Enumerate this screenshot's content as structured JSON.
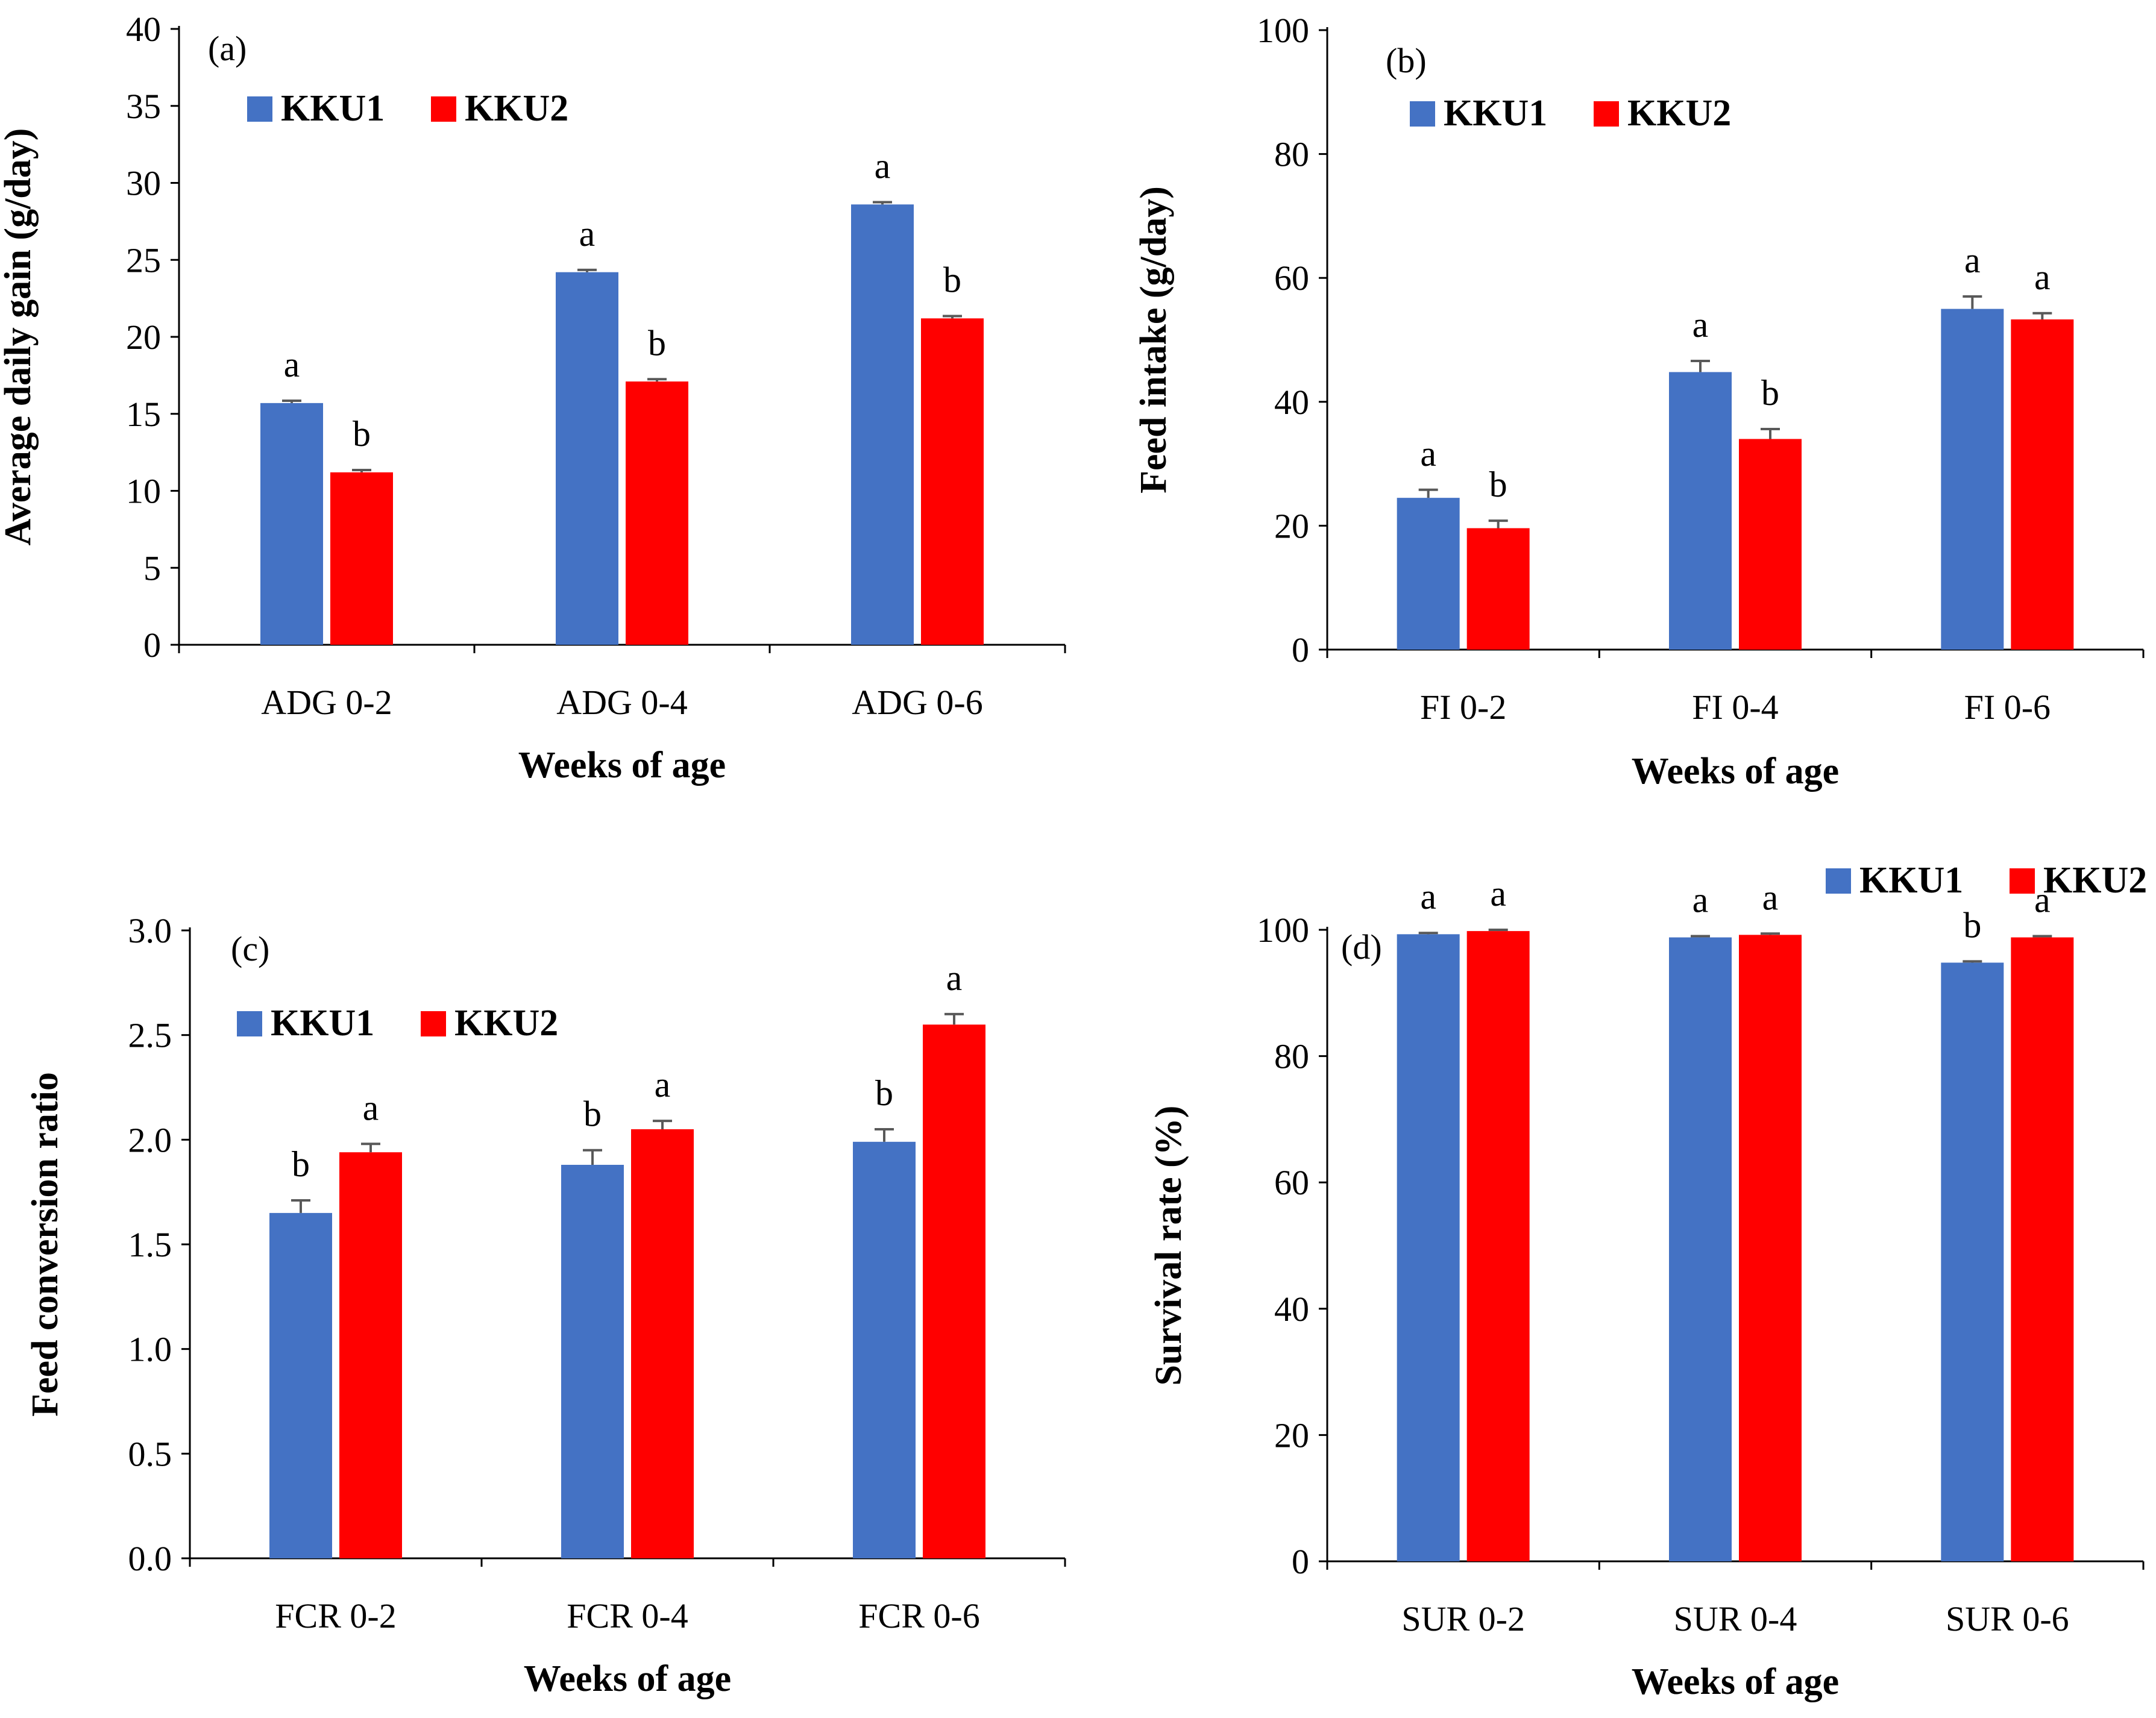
{
  "figure": {
    "colors": {
      "KKU1": "#4472C4",
      "KKU2": "#FF0000",
      "error_bar": "#595959",
      "axis": "#000000"
    }
  },
  "chart_data": [
    {
      "type": "bar",
      "panel_tag": "(a)",
      "ylabel": "Average daily gain (g/day)",
      "xlabel": "Weeks of age",
      "categories": [
        "ADG 0-2",
        "ADG 0-4",
        "ADG 0-6"
      ],
      "ylim": [
        0,
        40
      ],
      "yticks": [
        0,
        5,
        10,
        15,
        20,
        25,
        30,
        35,
        40
      ],
      "ytick_labels": [
        "0",
        "5",
        "10",
        "15",
        "20",
        "25",
        "30",
        "35",
        "40"
      ],
      "legend": [
        "KKU1",
        "KKU2"
      ],
      "legend_position": "top-left",
      "series": [
        {
          "name": "KKU1",
          "values": [
            15.7,
            24.2,
            28.6
          ],
          "errors": [
            0.15,
            0.15,
            0.15
          ],
          "letters": [
            "a",
            "a",
            "a"
          ]
        },
        {
          "name": "KKU2",
          "values": [
            11.2,
            17.1,
            21.2
          ],
          "errors": [
            0.15,
            0.15,
            0.15
          ],
          "letters": [
            "b",
            "b",
            "b"
          ]
        }
      ]
    },
    {
      "type": "bar",
      "panel_tag": "(b)",
      "ylabel": "Feed intake (g/day)",
      "xlabel": "Weeks of age",
      "categories": [
        "FI 0-2",
        "FI 0-4",
        "FI 0-6"
      ],
      "ylim": [
        0,
        100
      ],
      "yticks": [
        0,
        20,
        40,
        60,
        80,
        100
      ],
      "ytick_labels": [
        "0",
        "20",
        "40",
        "60",
        "80",
        "100"
      ],
      "legend": [
        "KKU1",
        "KKU2"
      ],
      "legend_position": "top-left",
      "series": [
        {
          "name": "KKU1",
          "values": [
            24.5,
            44.8,
            55.0
          ],
          "errors": [
            1.3,
            1.8,
            2.0
          ],
          "letters": [
            "a",
            "a",
            "a"
          ]
        },
        {
          "name": "KKU2",
          "values": [
            19.6,
            34.0,
            53.3
          ],
          "errors": [
            1.2,
            1.6,
            1.0
          ],
          "letters": [
            "b",
            "b",
            "a"
          ]
        }
      ]
    },
    {
      "type": "bar",
      "panel_tag": "(c)",
      "ylabel": "Feed conversion ratio",
      "xlabel": "Weeks of age",
      "categories": [
        "FCR 0-2",
        "FCR 0-4",
        "FCR 0-6"
      ],
      "ylim": [
        0,
        3
      ],
      "yticks": [
        0,
        0.5,
        1,
        1.5,
        2,
        2.5,
        3
      ],
      "ytick_labels": [
        "0.0",
        "0.5",
        "1.0",
        "1.5",
        "2.0",
        "2.5",
        "3.0"
      ],
      "legend": [
        "KKU1",
        "KKU2"
      ],
      "legend_position": "top-left",
      "series": [
        {
          "name": "KKU1",
          "values": [
            1.65,
            1.88,
            1.99
          ],
          "errors": [
            0.06,
            0.07,
            0.06
          ],
          "letters": [
            "b",
            "b",
            "b"
          ]
        },
        {
          "name": "KKU2",
          "values": [
            1.94,
            2.05,
            2.55
          ],
          "errors": [
            0.04,
            0.04,
            0.05
          ],
          "letters": [
            "a",
            "a",
            "a"
          ]
        }
      ]
    },
    {
      "type": "bar",
      "panel_tag": "(d)",
      "ylabel": "Survival rate (%)",
      "xlabel": "Weeks of age",
      "categories": [
        "SUR 0-2",
        "SUR 0-4",
        "SUR 0-6"
      ],
      "ylim": [
        0,
        100
      ],
      "yticks": [
        0,
        20,
        40,
        60,
        80,
        100
      ],
      "ytick_labels": [
        "0",
        "20",
        "40",
        "60",
        "80",
        "100"
      ],
      "legend": [
        "KKU1",
        "KKU2"
      ],
      "legend_position": "top-right",
      "series": [
        {
          "name": "KKU1",
          "values": [
            99.3,
            98.8,
            94.8
          ],
          "errors": [
            0.2,
            0.2,
            0.2
          ],
          "letters": [
            "a",
            "a",
            "b"
          ]
        },
        {
          "name": "KKU2",
          "values": [
            99.8,
            99.2,
            98.8
          ],
          "errors": [
            0.2,
            0.2,
            0.2
          ],
          "letters": [
            "a",
            "a",
            "a"
          ]
        }
      ]
    }
  ]
}
